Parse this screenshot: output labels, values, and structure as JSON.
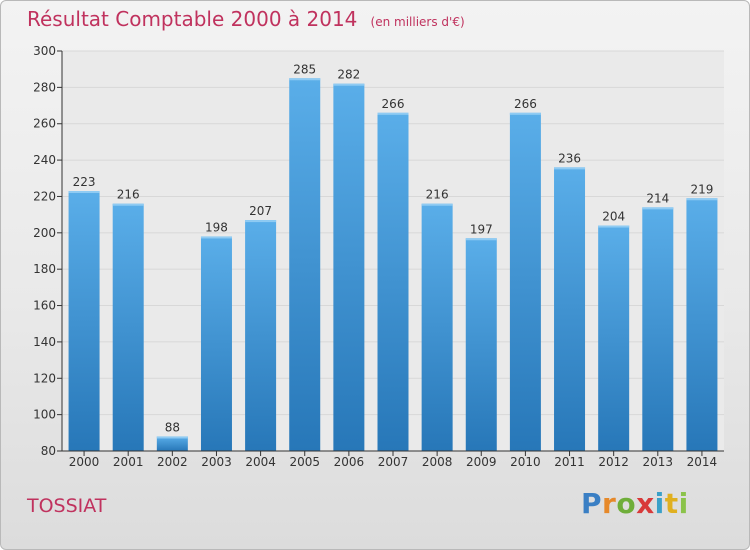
{
  "header": {
    "title": "Résultat Comptable 2000 à 2014",
    "subtitle": "(en milliers d'€)"
  },
  "footer": {
    "commune": "TOSSIAT",
    "logo_text": "Proxiti"
  },
  "colors": {
    "title": "#c0325e",
    "bar_top": "#5aaee9",
    "bar_bottom": "#2777b8",
    "grid": "#d8d8d8",
    "axis": "#333333"
  },
  "chart_data": {
    "type": "bar",
    "title": "Résultat Comptable 2000 à 2014",
    "subtitle": "(en milliers d'€)",
    "categories": [
      "2000",
      "2001",
      "2002",
      "2003",
      "2004",
      "2005",
      "2006",
      "2007",
      "2008",
      "2009",
      "2010",
      "2011",
      "2012",
      "2013",
      "2014"
    ],
    "values": [
      223,
      216,
      88,
      198,
      207,
      285,
      282,
      266,
      216,
      197,
      266,
      236,
      204,
      214,
      219
    ],
    "ylim": [
      80,
      300
    ],
    "yticks": [
      80,
      100,
      120,
      140,
      160,
      180,
      200,
      220,
      240,
      260,
      280,
      300
    ],
    "grid": true,
    "xlabel": "",
    "ylabel": ""
  }
}
